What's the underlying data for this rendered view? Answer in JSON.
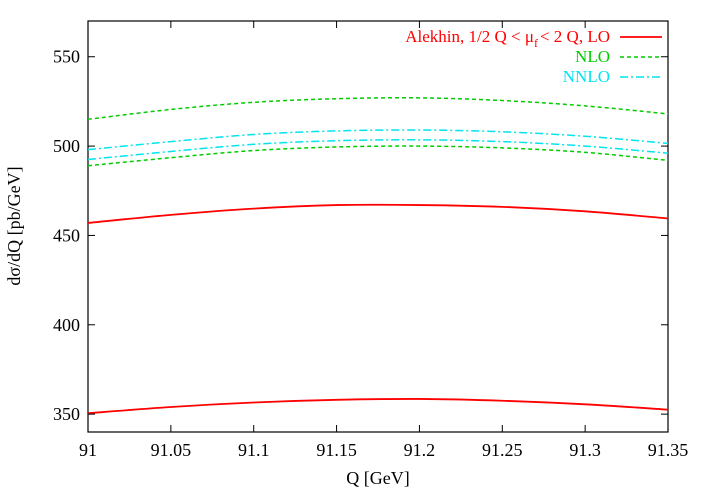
{
  "chart_data": {
    "type": "line",
    "xlabel": "Q [GeV]",
    "ylabel": "dσ/dQ [pb/GeV]",
    "xlim": [
      91,
      91.35
    ],
    "ylim": [
      340,
      570
    ],
    "xticks": [
      91,
      91.05,
      91.1,
      91.15,
      91.2,
      91.25,
      91.3,
      91.35
    ],
    "xtick_labels": [
      "91",
      "91.05",
      "91.1",
      "91.15",
      "91.2",
      "91.25",
      "91.3",
      "91.35"
    ],
    "yticks": [
      350,
      400,
      450,
      500,
      550
    ],
    "ytick_labels": [
      "350",
      "400",
      "450",
      "500",
      "550"
    ],
    "grid": false,
    "legend_position": "top-right",
    "legend": [
      {
        "label": "Alekhin, 1/2 Q < μ_f < 2 Q, LO",
        "label_main": "Alekhin, 1/2 Q < μ",
        "label_sub": "f",
        "label_tail": "< 2 Q, LO",
        "color": "#ff0000",
        "dash": "solid"
      },
      {
        "label": "NLO",
        "color": "#00cc00",
        "dash": "dashed"
      },
      {
        "label": "NNLO",
        "color": "#00e5ee",
        "dash": "dashdot"
      }
    ],
    "series": [
      {
        "group": "LO",
        "band": "upper",
        "color": "#ff0000",
        "dash": "solid",
        "x": [
          91,
          91.05,
          91.1,
          91.15,
          91.2,
          91.25,
          91.3,
          91.35
        ],
        "y": [
          457,
          461.5,
          465,
          467,
          467,
          466,
          463.5,
          459.5
        ]
      },
      {
        "group": "LO",
        "band": "lower",
        "color": "#ff0000",
        "dash": "solid",
        "x": [
          91,
          91.05,
          91.1,
          91.15,
          91.2,
          91.25,
          91.3,
          91.35
        ],
        "y": [
          350.5,
          354,
          356.5,
          358,
          358.5,
          357.5,
          355.5,
          352.5
        ]
      },
      {
        "group": "NLO",
        "band": "upper",
        "color": "#00cc00",
        "dash": "dashed",
        "x": [
          91,
          91.05,
          91.1,
          91.15,
          91.2,
          91.25,
          91.3,
          91.35
        ],
        "y": [
          515,
          520.5,
          524.5,
          526.5,
          527,
          525.5,
          522.5,
          518
        ]
      },
      {
        "group": "NLO",
        "band": "lower",
        "color": "#00cc00",
        "dash": "dashed",
        "x": [
          91,
          91.05,
          91.1,
          91.15,
          91.2,
          91.25,
          91.3,
          91.35
        ],
        "y": [
          489,
          493.5,
          497.5,
          499.5,
          500,
          499,
          496.5,
          492
        ]
      },
      {
        "group": "NNLO",
        "band": "upper",
        "color": "#00e5ee",
        "dash": "dashdot",
        "x": [
          91,
          91.05,
          91.1,
          91.15,
          91.2,
          91.25,
          91.3,
          91.35
        ],
        "y": [
          498,
          502.5,
          506.5,
          508.5,
          509,
          508,
          505.5,
          501.5
        ]
      },
      {
        "group": "NNLO",
        "band": "lower",
        "color": "#00e5ee",
        "dash": "dashdot",
        "x": [
          91,
          91.05,
          91.1,
          91.15,
          91.2,
          91.25,
          91.3,
          91.35
        ],
        "y": [
          492.5,
          497,
          501,
          503,
          503.5,
          502.5,
          500,
          496
        ]
      }
    ]
  }
}
